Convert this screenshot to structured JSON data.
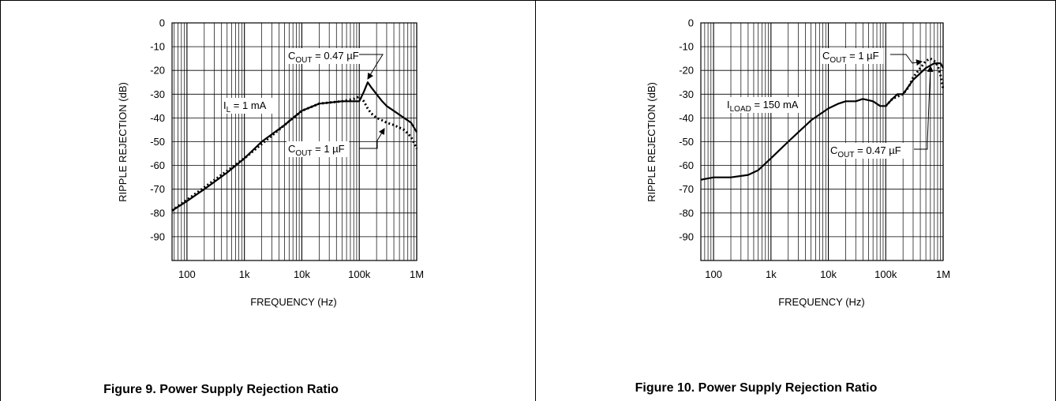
{
  "chart_data": [
    {
      "type": "line",
      "title": "",
      "xlabel": "FREQUENCY (Hz)",
      "ylabel": "RIPPLE REJECTION (dB)",
      "x_scale": "log",
      "xlim": [
        55,
        1000000
      ],
      "ylim": [
        -100,
        0
      ],
      "grid": true,
      "x_ticks": [
        100,
        1000,
        10000,
        100000,
        1000000
      ],
      "x_tick_labels": [
        "100",
        "1k",
        "10k",
        "100k",
        "1M"
      ],
      "y_ticks": [
        0,
        -10,
        -20,
        -30,
        -40,
        -50,
        -60,
        -70,
        -80,
        -90
      ],
      "y_tick_labels": [
        "0",
        "-10",
        "-20",
        "-30",
        "-40",
        "-50",
        "-60",
        "-70",
        "-80",
        "-90"
      ],
      "annotations": [
        {
          "main": "I",
          "sub": "L",
          "rest": " = 1 mA"
        },
        {
          "main": "C",
          "sub": "OUT",
          "rest": " = 0.47 µF"
        },
        {
          "main": "C",
          "sub": "OUT",
          "rest": " = 1 µF"
        }
      ],
      "series": [
        {
          "style": "solid",
          "x": [
            55,
            100,
            200,
            500,
            1000,
            2000,
            5000,
            10000,
            20000,
            50000,
            80000,
            100000,
            120000,
            140000,
            160000,
            200000,
            250000,
            300000,
            400000,
            600000,
            800000,
            1000000
          ],
          "y": [
            -79,
            -75,
            -70,
            -63,
            -57,
            -50,
            -43,
            -37,
            -34,
            -33,
            -33,
            -33,
            -29,
            -25,
            -27,
            -30,
            -33,
            -35,
            -37,
            -40,
            -42,
            -46
          ]
        },
        {
          "style": "dotted",
          "x": [
            55,
            1000,
            10000,
            20000,
            50000,
            80000,
            100000,
            120000,
            140000,
            160000,
            200000,
            250000,
            300000,
            400000,
            600000,
            800000,
            1000000
          ],
          "y": [
            -79,
            -57,
            -37,
            -34,
            -33,
            -32,
            -31,
            -33,
            -36,
            -38,
            -40,
            -41,
            -42,
            -43,
            -45,
            -48,
            -53
          ]
        }
      ]
    },
    {
      "type": "line",
      "title": "",
      "xlabel": "FREQUENCY (Hz)",
      "ylabel": "RIPPLE REJECTION (dB)",
      "x_scale": "log",
      "xlim": [
        60,
        1000000
      ],
      "ylim": [
        -100,
        0
      ],
      "grid": true,
      "x_ticks": [
        100,
        1000,
        10000,
        100000,
        1000000
      ],
      "x_tick_labels": [
        "100",
        "1k",
        "10k",
        "100k",
        "1M"
      ],
      "y_ticks": [
        0,
        -10,
        -20,
        -30,
        -40,
        -50,
        -60,
        -70,
        -80,
        -90
      ],
      "y_tick_labels": [
        "0",
        "-10",
        "-20",
        "-30",
        "-40",
        "-50",
        "-60",
        "-70",
        "-80",
        "-90"
      ],
      "annotations": [
        {
          "main": "C",
          "sub": "OUT",
          "rest": " = 1 µF"
        },
        {
          "main": "I",
          "sub": "LOAD",
          "rest": " = 150 mA"
        },
        {
          "main": "C",
          "sub": "OUT",
          "rest": " = 0.47 µF"
        }
      ],
      "series": [
        {
          "style": "solid",
          "x": [
            60,
            100,
            200,
            400,
            600,
            1000,
            2000,
            5000,
            10000,
            15000,
            20000,
            30000,
            40000,
            60000,
            80000,
            100000,
            130000,
            160000,
            200000,
            300000,
            500000,
            700000,
            900000,
            1000000
          ],
          "y": [
            -66,
            -65,
            -65,
            -64,
            -62,
            -57,
            -50,
            -41,
            -36,
            -34,
            -33,
            -33,
            -32,
            -33,
            -35,
            -35,
            -32,
            -30,
            -30,
            -24,
            -19,
            -17,
            -17,
            -19
          ]
        },
        {
          "style": "dotted",
          "x": [
            100000,
            130000,
            160000,
            200000,
            250000,
            300000,
            400000,
            500000,
            600000,
            700000,
            800000,
            900000,
            1000000
          ],
          "y": [
            -35,
            -32,
            -31,
            -30,
            -27,
            -23,
            -19,
            -16,
            -15,
            -16,
            -18,
            -22,
            -28
          ]
        }
      ]
    }
  ],
  "captions": [
    "Figure 9. Power Supply Rejection Ratio",
    "Figure 10. Power Supply Rejection Ratio"
  ]
}
